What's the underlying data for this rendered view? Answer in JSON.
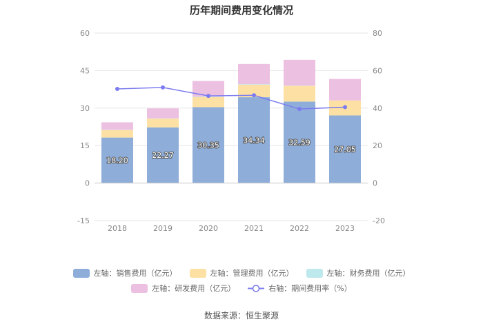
{
  "chart_data": {
    "type": "bar",
    "title": "历年期间费用变化情况",
    "categories": [
      "2018",
      "2019",
      "2020",
      "2021",
      "2022",
      "2023"
    ],
    "stacked": true,
    "left_axis": {
      "ylim": [
        -15,
        60
      ],
      "ticks": [
        "-15",
        "0",
        "15",
        "30",
        "45",
        "60"
      ]
    },
    "right_axis": {
      "ylim": [
        -20,
        80
      ],
      "ticks": [
        "-20",
        "0",
        "20",
        "40",
        "60",
        "80"
      ]
    },
    "series": [
      {
        "name": "左轴：销售费用（亿元）",
        "type": "bar",
        "axis": "left",
        "color": "#8eadd9",
        "values": [
          18.2,
          22.27,
          30.35,
          34.34,
          32.59,
          27.05
        ],
        "labels": [
          "18.20",
          "22.27",
          "30.35",
          "34.34",
          "32.59",
          "27.05"
        ]
      },
      {
        "name": "左轴：管理费用（亿元）",
        "type": "bar",
        "axis": "left",
        "color": "#fde0a3",
        "values": [
          3.0,
          3.5,
          4.0,
          5.0,
          6.3,
          6.0
        ]
      },
      {
        "name": "左轴：财务费用（亿元）",
        "type": "bar",
        "axis": "left",
        "color": "#bde8ec",
        "values": [
          0.1,
          0.1,
          0.2,
          0.2,
          0.1,
          -0.2
        ]
      },
      {
        "name": "左轴：研发费用（亿元）",
        "type": "bar",
        "axis": "left",
        "color": "#ebc0e0",
        "values": [
          3.0,
          4.0,
          6.3,
          8.1,
          10.3,
          8.6
        ]
      },
      {
        "name": "右轴：期间费用率（%）",
        "type": "line",
        "axis": "right",
        "color": "#7b7bf0",
        "values": [
          50.2,
          51.0,
          46.5,
          46.8,
          39.5,
          40.5
        ]
      }
    ]
  },
  "source_text": "数据来源：恒生聚源"
}
